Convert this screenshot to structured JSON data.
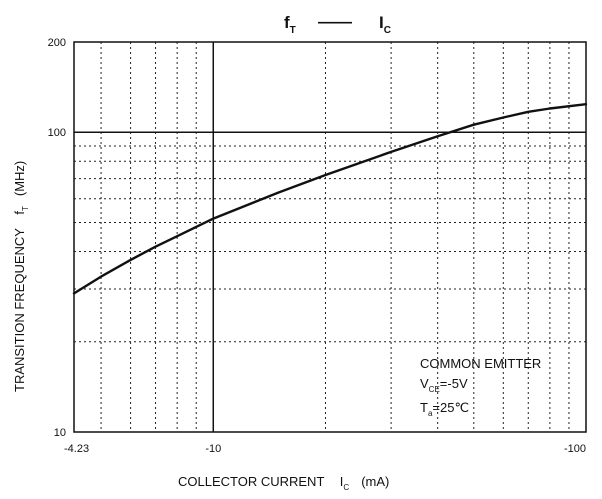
{
  "chart_data": {
    "type": "line",
    "title_main": "f",
    "title_main_sub": "T",
    "title_dash": "——",
    "title_second": "I",
    "title_second_sub": "C",
    "xlabel_main": "COLLECTOR CURRENT",
    "xlabel_sym": "I",
    "xlabel_sub": "C",
    "xlabel_unit": "(mA)",
    "ylabel_main": "TRANSITION FREQUENCY",
    "ylabel_sym": "f",
    "ylabel_sub": "T",
    "ylabel_unit": "(MHz)",
    "x_scale": "log",
    "y_scale": "log",
    "xlim": [
      -4.23,
      -100
    ],
    "ylim": [
      10,
      200
    ],
    "x_tick_labels": [
      "-4.23",
      "-10",
      "-100"
    ],
    "y_tick_labels": [
      "10",
      "100",
      "200"
    ],
    "x_ticks": [
      4.23,
      10,
      100
    ],
    "y_ticks": [
      10,
      100,
      200
    ],
    "x_grid_minor": [
      5,
      6,
      7,
      8,
      9,
      20,
      30,
      40,
      50,
      60,
      70,
      80,
      90
    ],
    "y_grid_minor": [
      20,
      30,
      40,
      50,
      60,
      70,
      80,
      90
    ],
    "x_grid_major": [
      10
    ],
    "y_grid_major": [
      100
    ],
    "grid": true,
    "series": [
      {
        "x": [
          4.23,
          5,
          6,
          7,
          8,
          10,
          15,
          20,
          30,
          40,
          50,
          60,
          70,
          80,
          100
        ],
        "y": [
          29,
          33,
          37.5,
          41.5,
          45,
          51.5,
          63,
          72,
          86,
          97,
          106,
          112,
          117,
          120,
          124
        ]
      }
    ],
    "annotation": {
      "line1": "COMMON EMITTER",
      "line2_sym": "V",
      "line2_sub": "CE",
      "line2_val": "=-5V",
      "line3_sym": "T",
      "line3_sub": "a",
      "line3_val": "=25℃"
    }
  }
}
